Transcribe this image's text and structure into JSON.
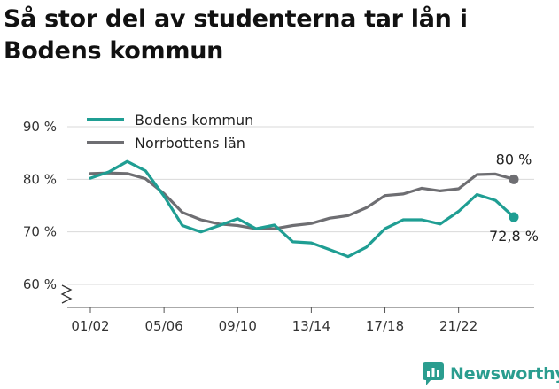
{
  "title": "Så stor del av studenterna tar lån i Bodens kommun",
  "brand": {
    "name": "Newsworthy",
    "icon": "bar-chart-speech-icon",
    "color": "#2a9d8f"
  },
  "chart_data": {
    "type": "line",
    "title": "Så stor del av studenterna tar lån i Bodens kommun",
    "xlabel": "",
    "ylabel": "",
    "ylim": [
      57,
      91
    ],
    "ytick_values": [
      60,
      70,
      80,
      90
    ],
    "ytick_labels": [
      "60 %",
      "70 %",
      "80 %",
      "90 %"
    ],
    "xtick_labels": [
      "01/02",
      "05/06",
      "09/10",
      "13/14",
      "17/18",
      "21/22"
    ],
    "x": [
      "01/02",
      "02/03",
      "03/04",
      "04/05",
      "05/06",
      "06/07",
      "07/08",
      "08/09",
      "09/10",
      "10/11",
      "11/12",
      "12/13",
      "13/14",
      "14/15",
      "15/16",
      "16/17",
      "17/18",
      "18/19",
      "19/20",
      "20/21",
      "21/22",
      "22/23",
      "23/24",
      "24/25"
    ],
    "axis_break": true,
    "grid": "horizontal",
    "legend_position": "top-left",
    "series": [
      {
        "name": "Bodens kommun",
        "color": "#1f9e93",
        "values": [
          80.2,
          81.4,
          83.4,
          81.6,
          76.8,
          71.2,
          70.0,
          71.2,
          72.5,
          70.6,
          71.3,
          68.1,
          67.9,
          66.6,
          65.3,
          67.1,
          70.6,
          72.3,
          72.3,
          71.5,
          73.9,
          77.1,
          76.0,
          72.8
        ],
        "end_label": "72,8 %"
      },
      {
        "name": "Norrbottens län",
        "color": "#6e6e72",
        "values": [
          81.1,
          81.2,
          81.1,
          80.1,
          77.3,
          73.7,
          72.3,
          71.5,
          71.2,
          70.6,
          70.6,
          71.2,
          71.6,
          72.6,
          73.1,
          74.6,
          76.9,
          77.2,
          78.3,
          77.8,
          78.2,
          80.9,
          81.0,
          80.0
        ],
        "end_label": "80 %"
      }
    ]
  }
}
